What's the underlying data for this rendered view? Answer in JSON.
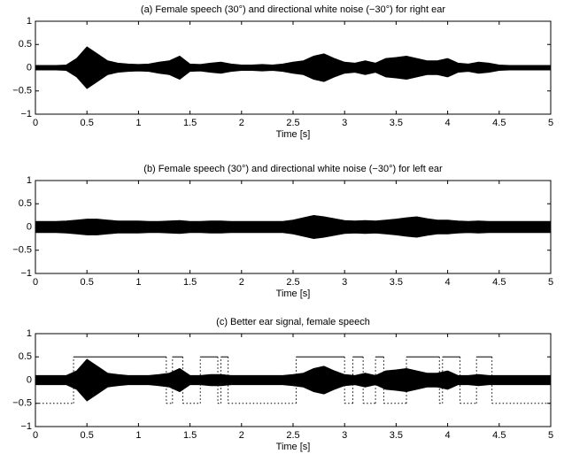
{
  "chart_data": [
    {
      "type": "envelope",
      "title": "(a) Female speech (30°) and directional white noise (−30°) for right ear",
      "xlabel": "Time [s]",
      "xlim": [
        0,
        5
      ],
      "ylim": [
        -1,
        1
      ],
      "xticks": [
        0,
        0.5,
        1,
        1.5,
        2,
        2.5,
        3,
        3.5,
        4,
        4.5,
        5
      ],
      "yticks": [
        {
          "value": -1,
          "label": "−1"
        },
        {
          "value": -0.5,
          "label": "−0.5"
        },
        0,
        0.5,
        1
      ],
      "color": "#000000",
      "x": [
        0,
        0.1,
        0.2,
        0.3,
        0.4,
        0.5,
        0.6,
        0.7,
        0.8,
        0.9,
        1,
        1.1,
        1.2,
        1.3,
        1.4,
        1.5,
        1.6,
        1.7,
        1.8,
        1.9,
        2,
        2.1,
        2.2,
        2.3,
        2.4,
        2.5,
        2.6,
        2.7,
        2.8,
        2.9,
        3,
        3.1,
        3.2,
        3.3,
        3.4,
        3.5,
        3.6,
        3.7,
        3.8,
        3.9,
        4,
        4.1,
        4.2,
        4.3,
        4.4,
        4.5,
        4.6,
        4.7,
        4.8,
        4.9,
        5
      ],
      "values": [
        0.05,
        0.05,
        0.05,
        0.06,
        0.2,
        0.45,
        0.3,
        0.15,
        0.1,
        0.08,
        0.07,
        0.08,
        0.12,
        0.15,
        0.25,
        0.08,
        0.07,
        0.1,
        0.12,
        0.08,
        0.06,
        0.06,
        0.07,
        0.06,
        0.08,
        0.12,
        0.15,
        0.25,
        0.3,
        0.2,
        0.12,
        0.1,
        0.15,
        0.1,
        0.2,
        0.22,
        0.25,
        0.2,
        0.15,
        0.15,
        0.2,
        0.1,
        0.08,
        0.12,
        0.1,
        0.06,
        0.05,
        0.05,
        0.05,
        0.05,
        0.05
      ]
    },
    {
      "type": "envelope",
      "title": "(b) Female speech (30°) and directional white noise (−30°) for left ear",
      "xlabel": "Time [s]",
      "xlim": [
        0,
        5
      ],
      "ylim": [
        -1,
        1
      ],
      "xticks": [
        0,
        0.5,
        1,
        1.5,
        2,
        2.5,
        3,
        3.5,
        4,
        4.5,
        5
      ],
      "yticks": [
        {
          "value": -1,
          "label": "−1"
        },
        {
          "value": -0.5,
          "label": "−0.5"
        },
        0,
        0.5,
        1
      ],
      "color": "#000000",
      "x": [
        0,
        0.1,
        0.2,
        0.3,
        0.4,
        0.5,
        0.6,
        0.7,
        0.8,
        0.9,
        1,
        1.1,
        1.2,
        1.3,
        1.4,
        1.5,
        1.6,
        1.7,
        1.8,
        1.9,
        2,
        2.1,
        2.2,
        2.3,
        2.4,
        2.5,
        2.6,
        2.7,
        2.8,
        2.9,
        3,
        3.1,
        3.2,
        3.3,
        3.4,
        3.5,
        3.6,
        3.7,
        3.8,
        3.9,
        4,
        4.1,
        4.2,
        4.3,
        4.4,
        4.5,
        4.6,
        4.7,
        4.8,
        4.9,
        5
      ],
      "values": [
        0.12,
        0.12,
        0.12,
        0.13,
        0.15,
        0.17,
        0.17,
        0.15,
        0.13,
        0.13,
        0.13,
        0.12,
        0.12,
        0.13,
        0.14,
        0.12,
        0.12,
        0.13,
        0.13,
        0.12,
        0.12,
        0.12,
        0.12,
        0.12,
        0.12,
        0.15,
        0.2,
        0.25,
        0.22,
        0.18,
        0.14,
        0.13,
        0.14,
        0.13,
        0.15,
        0.17,
        0.2,
        0.22,
        0.18,
        0.15,
        0.15,
        0.13,
        0.12,
        0.13,
        0.12,
        0.12,
        0.12,
        0.12,
        0.12,
        0.12,
        0.12
      ]
    },
    {
      "type": "envelope",
      "title": "(c) Better ear signal, female speech",
      "xlabel": "Time [s]",
      "xlim": [
        0,
        5
      ],
      "ylim": [
        -1,
        1
      ],
      "xticks": [
        0,
        0.5,
        1,
        1.5,
        2,
        2.5,
        3,
        3.5,
        4,
        4.5,
        5
      ],
      "yticks": [
        {
          "value": -1,
          "label": "−1"
        },
        {
          "value": -0.5,
          "label": "−0.5"
        },
        0,
        0.5,
        1
      ],
      "color": "#000000",
      "x": [
        0,
        0.1,
        0.2,
        0.3,
        0.4,
        0.5,
        0.6,
        0.7,
        0.8,
        0.9,
        1,
        1.1,
        1.2,
        1.3,
        1.4,
        1.5,
        1.6,
        1.7,
        1.8,
        1.9,
        2,
        2.1,
        2.2,
        2.3,
        2.4,
        2.5,
        2.6,
        2.7,
        2.8,
        2.9,
        3,
        3.1,
        3.2,
        3.3,
        3.4,
        3.5,
        3.6,
        3.7,
        3.8,
        3.9,
        4,
        4.1,
        4.2,
        4.3,
        4.4,
        4.5,
        4.6,
        4.7,
        4.8,
        4.9,
        5
      ],
      "values": [
        0.1,
        0.1,
        0.1,
        0.1,
        0.2,
        0.45,
        0.3,
        0.15,
        0.12,
        0.1,
        0.1,
        0.1,
        0.12,
        0.15,
        0.25,
        0.1,
        0.1,
        0.12,
        0.12,
        0.1,
        0.1,
        0.1,
        0.1,
        0.1,
        0.1,
        0.12,
        0.15,
        0.25,
        0.3,
        0.2,
        0.12,
        0.1,
        0.15,
        0.1,
        0.2,
        0.22,
        0.25,
        0.2,
        0.15,
        0.15,
        0.2,
        0.1,
        0.1,
        0.12,
        0.1,
        0.1,
        0.1,
        0.1,
        0.1,
        0.1,
        0.1
      ],
      "segments": [
        [
          0,
          0.37,
          -0.5
        ],
        [
          0.37,
          1.27,
          0.5
        ],
        [
          1.27,
          1.33,
          -0.5
        ],
        [
          1.33,
          1.43,
          0.5
        ],
        [
          1.43,
          1.6,
          -0.5
        ],
        [
          1.6,
          1.77,
          0.5
        ],
        [
          1.77,
          1.8,
          -0.5
        ],
        [
          1.8,
          1.87,
          0.5
        ],
        [
          1.87,
          2.53,
          -0.5
        ],
        [
          2.53,
          3,
          0.5
        ],
        [
          3,
          3.08,
          -0.5
        ],
        [
          3.08,
          3.18,
          0.5
        ],
        [
          3.18,
          3.3,
          -0.5
        ],
        [
          3.3,
          3.38,
          0.5
        ],
        [
          3.38,
          3.6,
          -0.5
        ],
        [
          3.6,
          3.92,
          0.5
        ],
        [
          3.92,
          3.95,
          -0.5
        ],
        [
          3.95,
          4.12,
          0.5
        ],
        [
          4.12,
          4.28,
          -0.5
        ],
        [
          4.28,
          4.43,
          0.5
        ],
        [
          4.43,
          5,
          -0.5
        ]
      ]
    }
  ]
}
